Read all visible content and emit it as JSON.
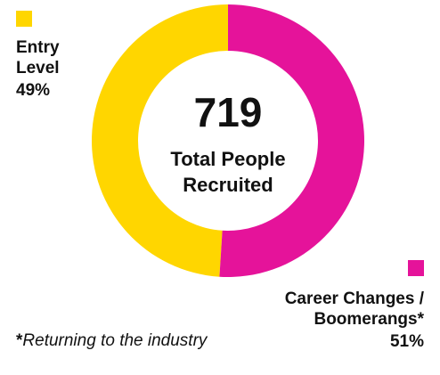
{
  "chart_data": {
    "type": "donut",
    "categories": [
      "Entry Level",
      "Career Changes / Boomerangs*"
    ],
    "values": [
      49,
      51
    ],
    "value_labels": [
      "49%",
      "51%"
    ],
    "colors": [
      "#ffd600",
      "#e5139a"
    ],
    "center_value": 719,
    "center_label": "Total People Recruited",
    "footnote_mark": "*",
    "footnote": "Returning to the industry"
  }
}
